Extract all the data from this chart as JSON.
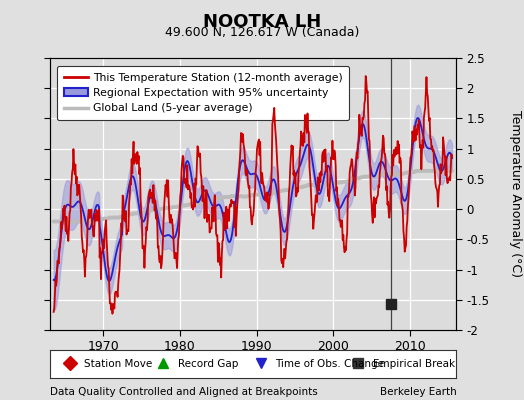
{
  "title": "NOOTKA LH",
  "subtitle": "49.600 N, 126.617 W (Canada)",
  "ylabel": "Temperature Anomaly (°C)",
  "xlabel_left": "Data Quality Controlled and Aligned at Breakpoints",
  "xlabel_right": "Berkeley Earth",
  "ylim": [
    -2.0,
    2.5
  ],
  "xlim": [
    1963,
    2016
  ],
  "xticks": [
    1970,
    1980,
    1990,
    2000,
    2010
  ],
  "yticks_right": [
    -2,
    -1.5,
    -1,
    -0.5,
    0,
    0.5,
    1,
    1.5,
    2,
    2.5
  ],
  "bg_color": "#e0e0e0",
  "plot_bg_color": "#dcdcdc",
  "red_line_color": "#cc0000",
  "blue_line_color": "#2222cc",
  "blue_fill_color": "#9999dd",
  "gray_line_color": "#bbbbbb",
  "vertical_line_color": "#444444",
  "vertical_line_x": 2007.5,
  "empirical_break_x": 2007.5,
  "empirical_break_y": -1.57,
  "legend_labels": [
    "This Temperature Station (12-month average)",
    "Regional Expectation with 95% uncertainty",
    "Global Land (5-year average)"
  ],
  "bottom_legend": [
    {
      "marker": "D",
      "color": "#cc0000",
      "label": "Station Move"
    },
    {
      "marker": "^",
      "color": "#009900",
      "label": "Record Gap"
    },
    {
      "marker": "v",
      "color": "#2222cc",
      "label": "Time of Obs. Change"
    },
    {
      "marker": "s",
      "color": "#333333",
      "label": "Empirical Break"
    }
  ]
}
